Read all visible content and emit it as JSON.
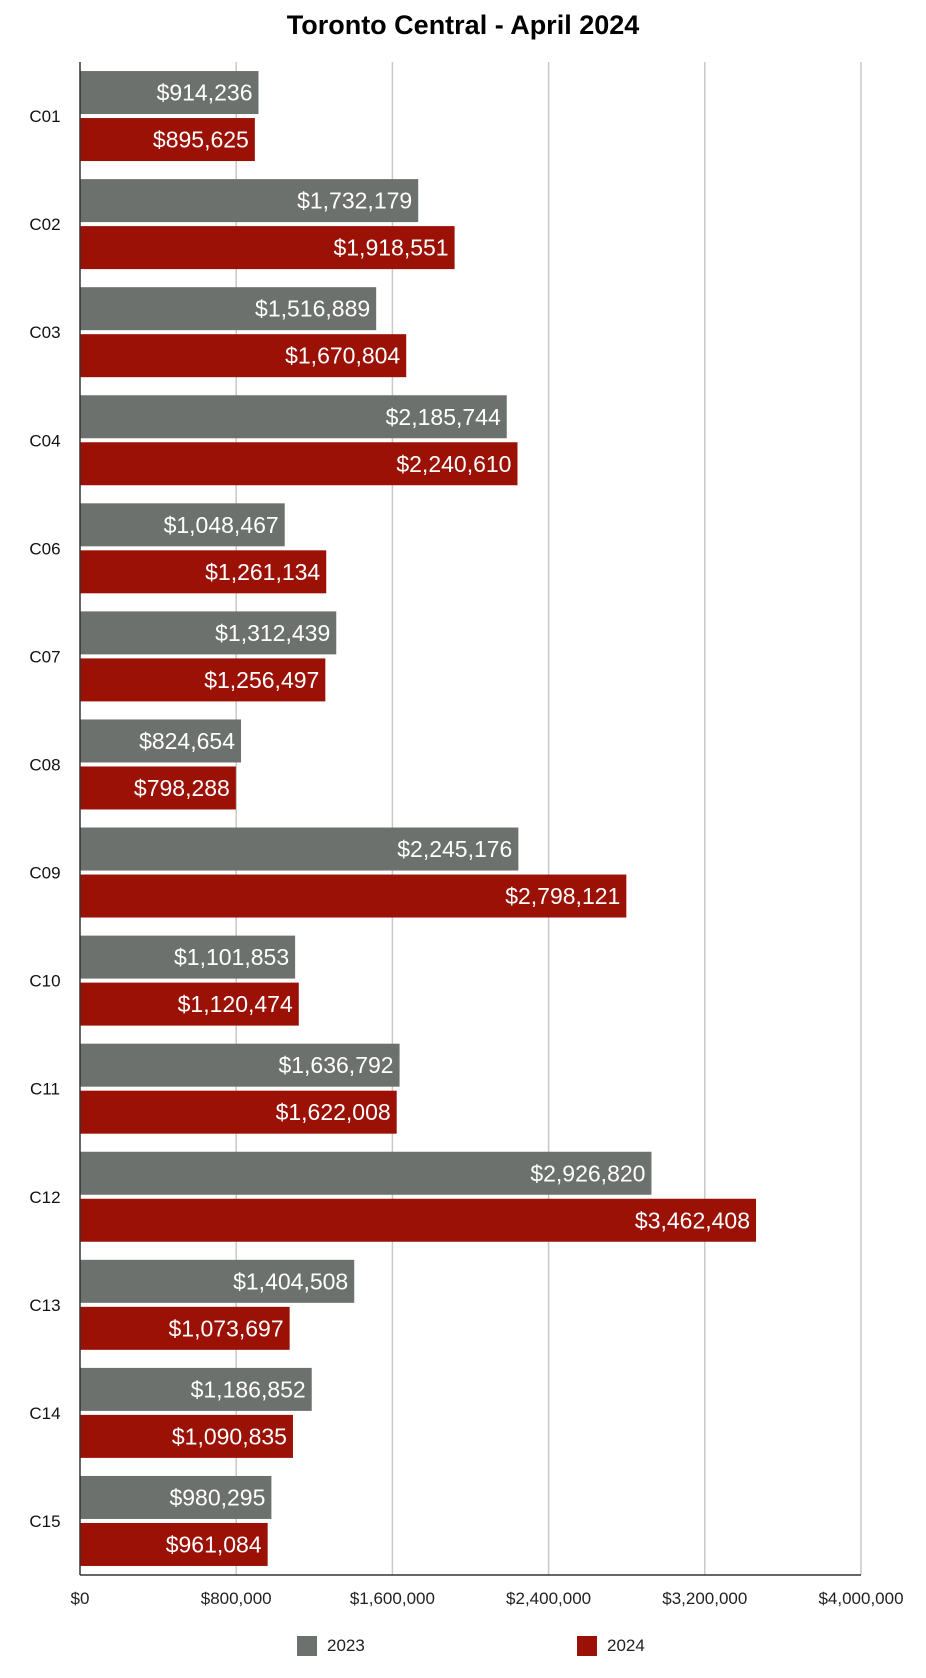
{
  "chart_data": {
    "type": "bar",
    "orientation": "horizontal",
    "title": "Toronto Central - April 2024",
    "xlabel": "",
    "ylabel": "",
    "xlim": [
      0,
      4000000
    ],
    "x_ticks": [
      0,
      800000,
      1600000,
      2400000,
      3200000,
      4000000
    ],
    "x_tick_labels": [
      "$0",
      "$800,000",
      "$1,600,000",
      "$2,400,000",
      "$3,200,000",
      "$4,000,000"
    ],
    "grid": "vertical",
    "legend_position": "bottom",
    "categories": [
      "C01",
      "C02",
      "C03",
      "C04",
      "C06",
      "C07",
      "C08",
      "C09",
      "C10",
      "C11",
      "C12",
      "C13",
      "C14",
      "C15"
    ],
    "series": [
      {
        "name": "2023",
        "color": "#6d716e",
        "values": [
          914236,
          1732179,
          1516889,
          2185744,
          1048467,
          1312439,
          824654,
          2245176,
          1101853,
          1636792,
          2926820,
          1404508,
          1186852,
          980295
        ],
        "labels": [
          "$914,236",
          "$1,732,179",
          "$1,516,889",
          "$2,185,744",
          "$1,048,467",
          "$1,312,439",
          "$824,654",
          "$2,245,176",
          "$1,101,853",
          "$1,636,792",
          "$2,926,820",
          "$1,404,508",
          "$1,186,852",
          "$980,295"
        ]
      },
      {
        "name": "2024",
        "color": "#9b1106",
        "values": [
          895625,
          1918551,
          1670804,
          2240610,
          1261134,
          1256497,
          798288,
          2798121,
          1120474,
          1622008,
          3462408,
          1073697,
          1090835,
          961084
        ],
        "labels": [
          "$895,625",
          "$1,918,551",
          "$1,670,804",
          "$2,240,610",
          "$1,261,134",
          "$1,256,497",
          "$798,288",
          "$2,798,121",
          "$1,120,474",
          "$1,622,008",
          "$3,462,408",
          "$1,073,697",
          "$1,090,835",
          "$961,084"
        ]
      }
    ]
  }
}
